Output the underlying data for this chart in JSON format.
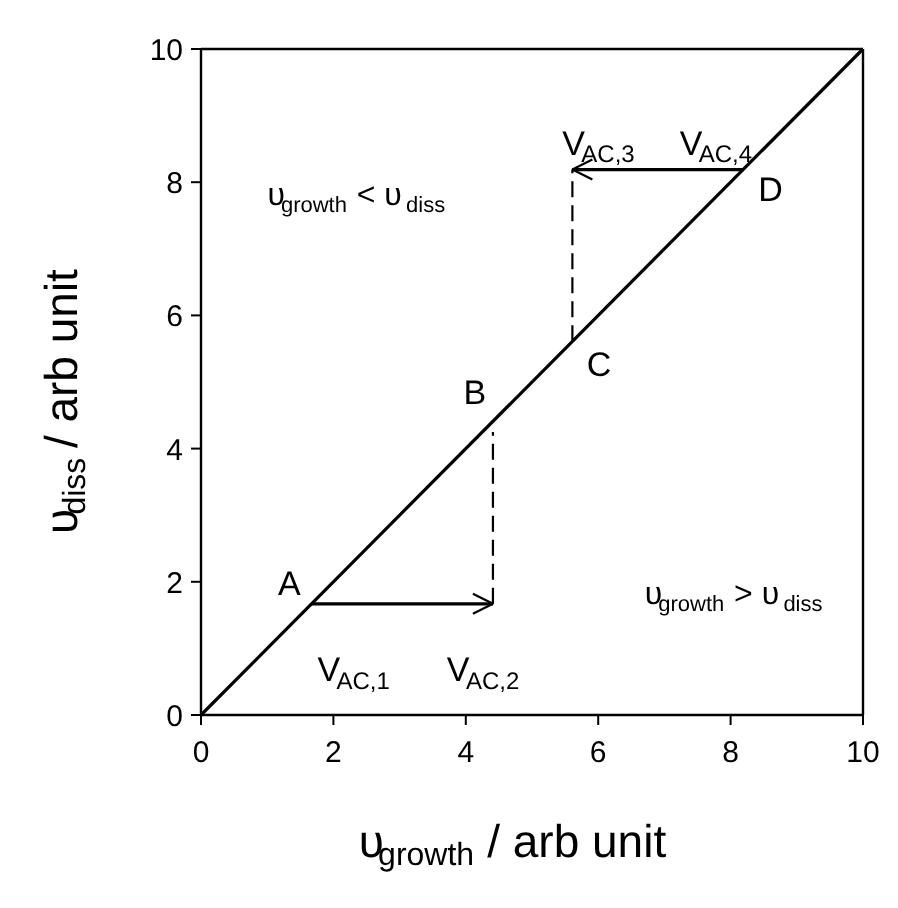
{
  "chart_data": {
    "type": "line",
    "xlabel": "υ$_{growth}$ / arb unit",
    "ylabel": "υ$_{diss}$ / arb unit",
    "xlim": [
      0,
      10
    ],
    "ylim": [
      0,
      10
    ],
    "xticks": [
      0,
      2,
      4,
      6,
      8,
      10
    ],
    "yticks": [
      0,
      2,
      4,
      6,
      8,
      10
    ],
    "grid": false,
    "marker": "none",
    "series": [
      {
        "color": "#000000",
        "x": [
          0,
          10
        ],
        "values": [
          0,
          10
        ],
        "line_style": "solid"
      },
      {
        "color": "#000000",
        "x": [
          1.67,
          4.41
        ],
        "values": [
          1.67,
          1.67
        ],
        "line_style": "solid"
      },
      {
        "color": "#000000",
        "x": [
          4.41,
          4.41
        ],
        "values": [
          1.67,
          4.25
        ],
        "line_style": "dashed"
      },
      {
        "color": "#000000",
        "x": [
          5.61,
          5.61
        ],
        "values": [
          5.61,
          8.19
        ],
        "line_style": "dashed"
      },
      {
        "color": "#000000",
        "x": [
          8.2,
          5.61
        ],
        "values": [
          8.19,
          8.19
        ],
        "line_style": "solid"
      }
    ],
    "annotations": [
      {
        "text": "A",
        "x": 1.67,
        "y": 1.67
      },
      {
        "text": "B",
        "x": 4.41,
        "y": 4.41
      },
      {
        "text": "C",
        "x": 5.61,
        "y": 5.61
      },
      {
        "text": "D",
        "x": 8.2,
        "y": 8.19
      },
      {
        "text": "V$_{AC,1}$",
        "x": 1.67,
        "y": 1.67
      },
      {
        "text": "V$_{AC,2}$",
        "x": 4.41,
        "y": 1.67
      },
      {
        "text": "V$_{AC,3}$",
        "x": 5.61,
        "y": 8.19
      },
      {
        "text": "V$_{AC,4}$",
        "x": 8.2,
        "y": 8.19
      },
      "υ$_{growth}$ < υ$_{diss}$",
      "υ$_{growth}$ > υ$_{diss}$"
    ]
  }
}
